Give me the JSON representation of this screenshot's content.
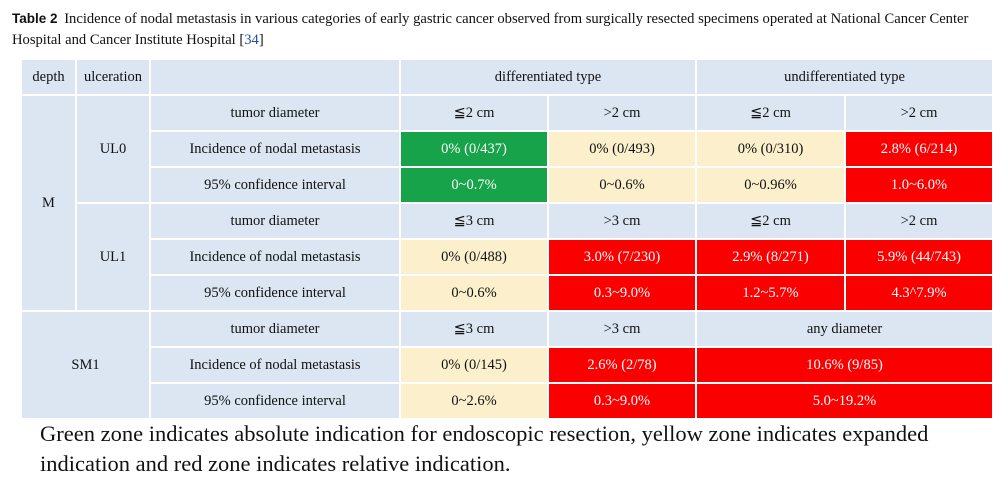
{
  "caption": {
    "label": "Table 2",
    "text": "Incidence of nodal metastasis in various categories of early gastric cancer observed from surgically resected specimens operated at National Cancer Center Hospital and Cancer Institute Hospital [",
    "ref": "34",
    "close": "]"
  },
  "header": {
    "depth": "depth",
    "ulceration": "ulceration",
    "differentiated": "differentiated type",
    "undifferentiated": "undifferentiated type"
  },
  "rows": {
    "label_tumor_diameter": "tumor diameter",
    "label_incidence": "Incidence of nodal metastasis",
    "label_ci": "95% confidence interval",
    "depth_m": "M",
    "depth_sm1": "SM1",
    "ul0": "UL0",
    "ul1": "UL1",
    "ul0_diam": [
      "≦2 cm",
      ">2 cm",
      "≦2 cm",
      ">2 cm"
    ],
    "ul0_inc": [
      "0% (0/437)",
      "0% (0/493)",
      "0% (0/310)",
      "2.8% (6/214)"
    ],
    "ul0_ci": [
      "0~0.7%",
      "0~0.6%",
      "0~0.96%",
      "1.0~6.0%"
    ],
    "ul1_diam": [
      "≦3 cm",
      ">3 cm",
      "≦2 cm",
      ">2 cm"
    ],
    "ul1_inc": [
      "0% (0/488)",
      "3.0% (7/230)",
      "2.9% (8/271)",
      "5.9% (44/743)"
    ],
    "ul1_ci": [
      "0~0.6%",
      "0.3~9.0%",
      "1.2~5.7%",
      "4.3^7.9%"
    ],
    "sm1_diam": [
      "≦3 cm",
      ">3 cm",
      "any diameter"
    ],
    "sm1_inc": [
      "0% (0/145)",
      "2.6% (2/78)",
      "10.6% (9/85)"
    ],
    "sm1_ci": [
      "0~2.6%",
      "0.3~9.0%",
      "5.0~19.2%"
    ]
  },
  "colors": {
    "header_blue": "#dce6f3",
    "green": "#17a34a",
    "yellow": "#fcefcc",
    "red": "#fb0000"
  },
  "note": "Green zone indicates absolute indication for endoscopic resection, yellow zone indicates expanded indication and red zone indicates relative indication."
}
